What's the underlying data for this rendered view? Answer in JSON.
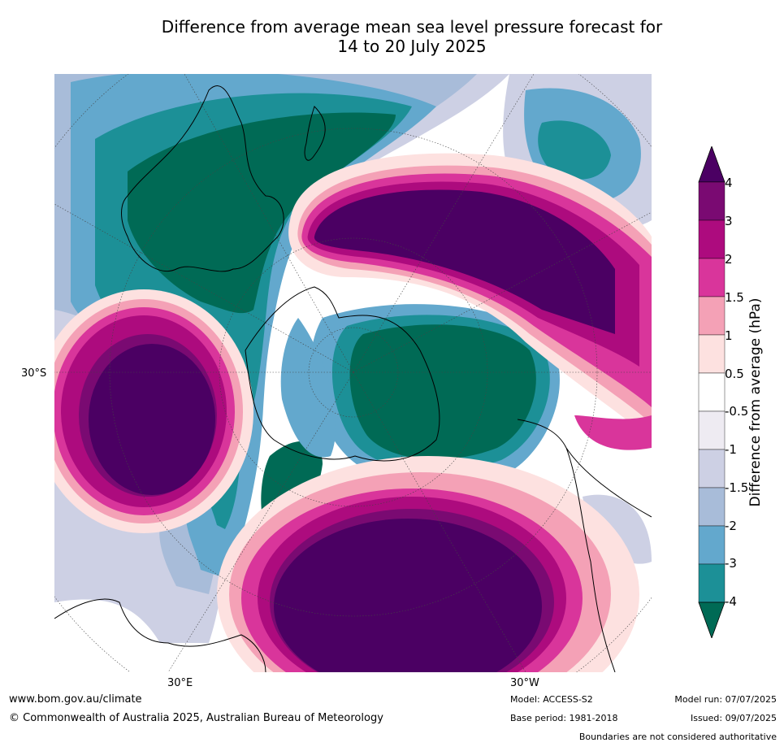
{
  "title": {
    "line1": "Difference from average mean sea level pressure forecast for",
    "line2": "14 to 20 July 2025"
  },
  "map": {
    "lon_labels": [
      "30°E",
      "30°W"
    ],
    "lat_labels": [
      "30°S"
    ],
    "projection": "south-polar-stereographic",
    "colors": {
      "ocean_neutral": "#ffffff",
      "land_outline": "#000000",
      "boundary": "#888888"
    }
  },
  "colorbar": {
    "label": "Difference from average (hPa)",
    "ticks": [
      "4",
      "3",
      "2",
      "1.5",
      "1",
      "0.5",
      "-0.5",
      "-1",
      "-1.5",
      "-2",
      "-3",
      "-4"
    ],
    "colors_top_to_bottom": [
      "#4b0063",
      "#7a0a72",
      "#ad0b7e",
      "#d9359b",
      "#f4a1b6",
      "#fde1e0",
      "#ffffff",
      "#eeebf2",
      "#cdd0e4",
      "#a8bcd9",
      "#63a8cd",
      "#1c9097",
      "#006a55"
    ]
  },
  "footer": {
    "website": "www.bom.gov.au/climate",
    "copyright": "© Commonwealth of Australia 2025, Australian Bureau of Meteorology",
    "model": "Model: ACCESS-S2",
    "base_period": "Base period: 1981-2018",
    "model_run": "Model run: 07/07/2025",
    "issued": "Issued: 09/07/2025",
    "disclaimer": "Boundaries are not considered authoritative"
  }
}
